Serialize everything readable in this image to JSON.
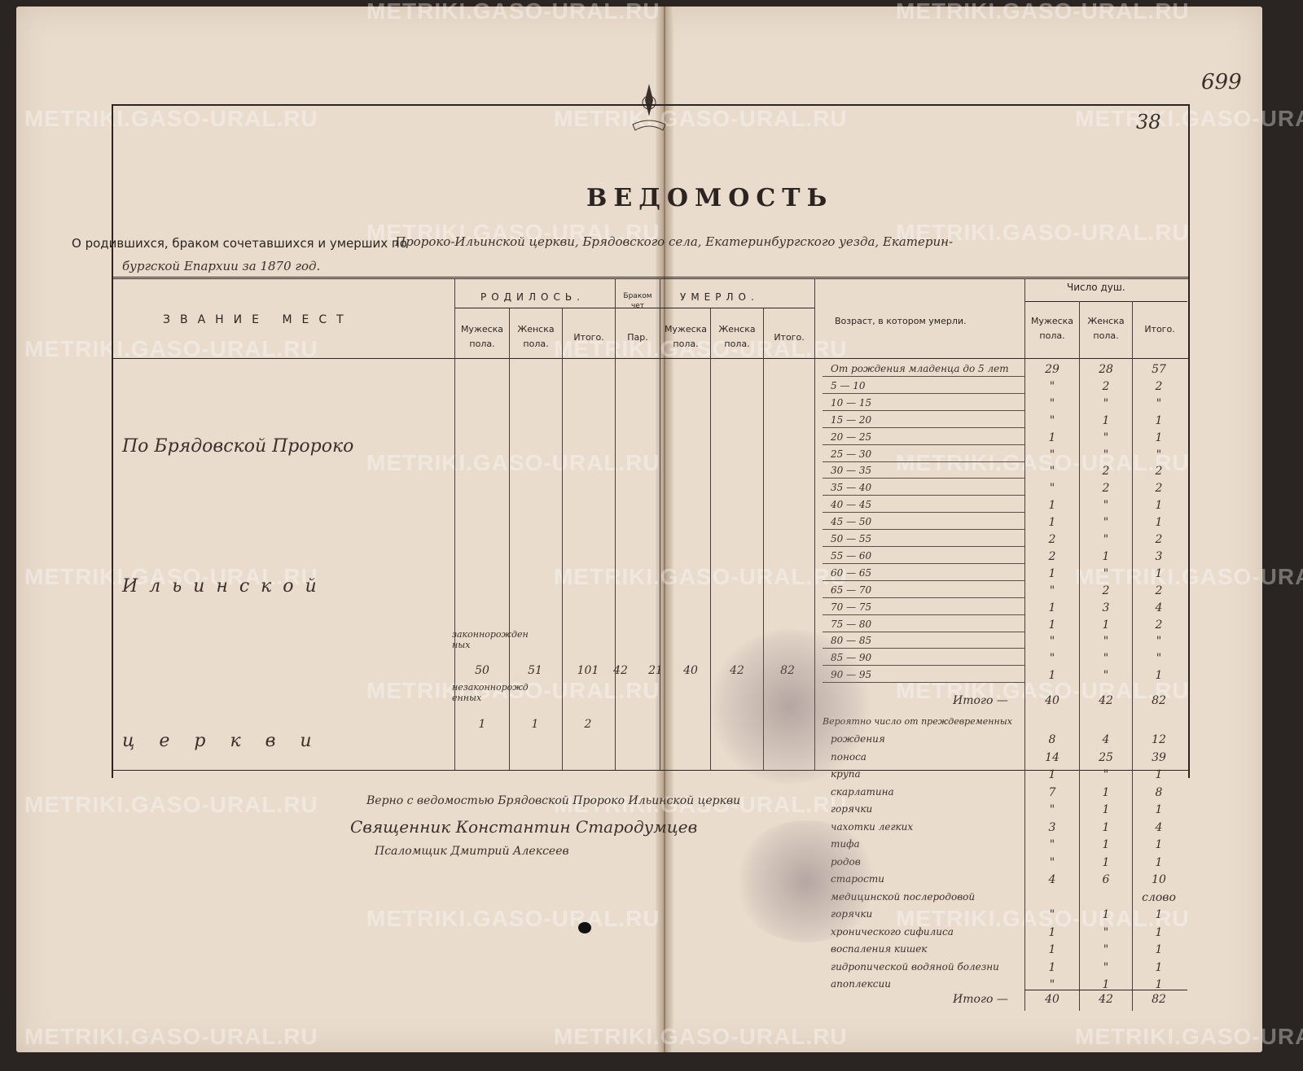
{
  "page_number": "699",
  "sheet_number": "38",
  "watermark": "METRIKI.GASO-URAL.RU",
  "title": "ВЕДОМОСТЬ",
  "subtitle_printed": "О родившихся, браком сочетавшихся и умерших по",
  "subtitle_handwritten_1": "Пророко-Ильинской церкви, Брядовского села, Екатеринбургского уезда, Екатерин-",
  "subtitle_handwritten_2": "бургской Епархии за 1870 год.",
  "headers": {
    "place": "ЗВАНИЕ МЕСТ",
    "born": "РОДИЛОСЬ.",
    "married": "Браком чет",
    "died": "УМЕРЛО.",
    "age": "Возраст, в котором умерли.",
    "souls": "Число душ.",
    "male": "Мужеска пола.",
    "female": "Женска пола.",
    "total": "Итого.",
    "pairs": "Пар."
  },
  "place_name": {
    "line1": "По Брядовской Пророко",
    "line2": "Ильинской",
    "line3": "церкви"
  },
  "births": {
    "legit_label": "законнорожденных",
    "legit": {
      "male": "50",
      "female": "51",
      "total": "101"
    },
    "illegit_label": "незаконнорожденных",
    "illegit": {
      "male": "1",
      "female": "1",
      "total": "2"
    }
  },
  "marriages": {
    "pairs": "42",
    "count": "21"
  },
  "deaths": {
    "male": "40",
    "female": "42",
    "total": "82"
  },
  "age_rows": [
    {
      "label": "От рождения младенца до 5 лет",
      "m": "29",
      "f": "28",
      "t": "57"
    },
    {
      "label": "5 — 10",
      "m": "\"",
      "f": "2",
      "t": "2"
    },
    {
      "label": "10 — 15",
      "m": "\"",
      "f": "\"",
      "t": "\""
    },
    {
      "label": "15 — 20",
      "m": "\"",
      "f": "1",
      "t": "1"
    },
    {
      "label": "20 — 25",
      "m": "1",
      "f": "\"",
      "t": "1"
    },
    {
      "label": "25 — 30",
      "m": "\"",
      "f": "\"",
      "t": "\""
    },
    {
      "label": "30 — 35",
      "m": "\"",
      "f": "2",
      "t": "2"
    },
    {
      "label": "35 — 40",
      "m": "\"",
      "f": "2",
      "t": "2"
    },
    {
      "label": "40 — 45",
      "m": "1",
      "f": "\"",
      "t": "1"
    },
    {
      "label": "45 — 50",
      "m": "1",
      "f": "\"",
      "t": "1"
    },
    {
      "label": "50 — 55",
      "m": "2",
      "f": "\"",
      "t": "2"
    },
    {
      "label": "55 — 60",
      "m": "2",
      "f": "1",
      "t": "3"
    },
    {
      "label": "60 — 65",
      "m": "1",
      "f": "\"",
      "t": "1"
    },
    {
      "label": "65 — 70",
      "m": "\"",
      "f": "2",
      "t": "2"
    },
    {
      "label": "70 — 75",
      "m": "1",
      "f": "3",
      "t": "4"
    },
    {
      "label": "75 — 80",
      "m": "1",
      "f": "1",
      "t": "2"
    },
    {
      "label": "80 — 85",
      "m": "\"",
      "f": "\"",
      "t": "\""
    },
    {
      "label": "85 — 90",
      "m": "\"",
      "f": "\"",
      "t": "\""
    },
    {
      "label": "90 — 95",
      "m": "1",
      "f": "\"",
      "t": "1"
    }
  ],
  "age_total": {
    "label": "Итого —",
    "m": "40",
    "f": "42",
    "t": "82"
  },
  "causes_heading": "Вероятно число от преждевременных",
  "cause_rows": [
    {
      "label": "рождения",
      "m": "8",
      "f": "4",
      "t": "12"
    },
    {
      "label": "поноса",
      "m": "14",
      "f": "25",
      "t": "39"
    },
    {
      "label": "крупа",
      "m": "1",
      "f": "\"",
      "t": "1"
    },
    {
      "label": "скарлатина",
      "m": "7",
      "f": "1",
      "t": "8"
    },
    {
      "label": "горячки",
      "m": "\"",
      "f": "1",
      "t": "1"
    },
    {
      "label": "чахотки легких",
      "m": "3",
      "f": "1",
      "t": "4"
    },
    {
      "label": "тифа",
      "m": "\"",
      "f": "1",
      "t": "1"
    },
    {
      "label": "родов",
      "m": "\"",
      "f": "1",
      "t": "1"
    },
    {
      "label": "старости",
      "m": "4",
      "f": "6",
      "t": "10"
    },
    {
      "label": "медицинской послеродовой",
      "m": "",
      "f": "",
      "t": "слово"
    },
    {
      "label": "горячки",
      "m": "\"",
      "f": "1",
      "t": "1"
    },
    {
      "label": "хронического сифилиса",
      "m": "1",
      "f": "\"",
      "t": "1"
    },
    {
      "label": "воспаления кишек",
      "m": "1",
      "f": "\"",
      "t": "1"
    },
    {
      "label": "гидропической водяной болезни",
      "m": "1",
      "f": "\"",
      "t": "1"
    },
    {
      "label": "апоплексии",
      "m": "\"",
      "f": "1",
      "t": "1"
    }
  ],
  "cause_total": {
    "label": "Итого —",
    "m": "40",
    "f": "42",
    "t": "82"
  },
  "attestation": {
    "line1": "Верно с ведомостью Брядовской Пророко Ильинской церкви",
    "line2": "Священник Константин Стародумцев",
    "line3": "Псаломщик Дмитрий Алексеев"
  }
}
